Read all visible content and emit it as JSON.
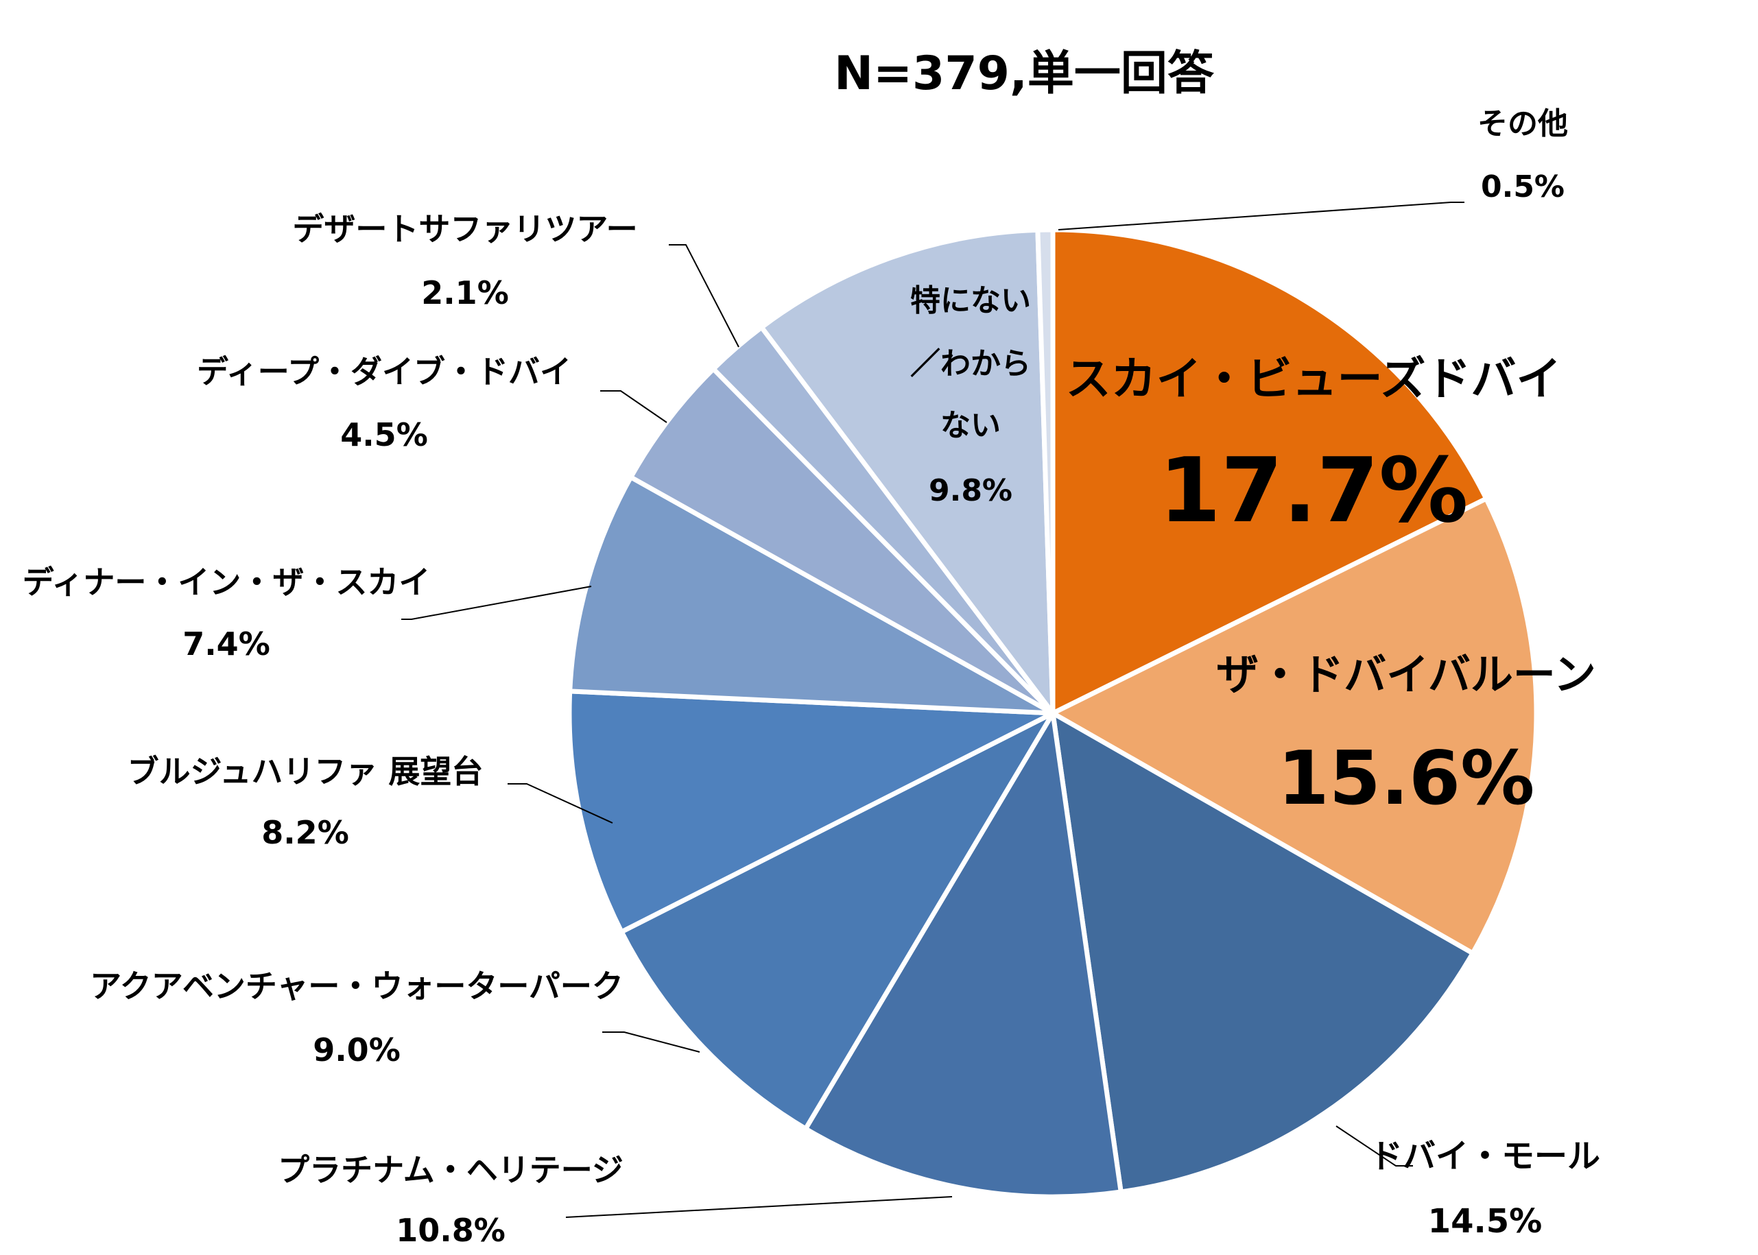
{
  "chart_data": {
    "type": "pie",
    "title": "N=379,単一回答",
    "slices": [
      {
        "label": "スカイ・ビューズドバイ",
        "label_lines": [
          "スカイ・ビューズドバイ"
        ],
        "value": 17.7,
        "value_text": "17.7%",
        "color": "#E46C0A"
      },
      {
        "label": "ザ・ドバイバルーン",
        "label_lines": [
          "ザ・ドバイバルーン"
        ],
        "value": 15.6,
        "value_text": "15.6%",
        "color": "#F0A76B"
      },
      {
        "label": "ドバイ・モール",
        "label_lines": [
          "ドバイ・モール"
        ],
        "value": 14.5,
        "value_text": "14.5%",
        "color": "#416B9C"
      },
      {
        "label": "プラチナム・ヘリテージ",
        "label_lines": [
          "プラチナム・ヘリテージ"
        ],
        "value": 10.8,
        "value_text": "10.8%",
        "color": "#4671A7"
      },
      {
        "label": "アクアベンチャー・ウォーターパーク",
        "label_lines": [
          "アクアベンチャー・ウォーターパーク"
        ],
        "value": 9.0,
        "value_text": "9.0%",
        "color": "#4A7AB3"
      },
      {
        "label": "ブルジュハリファ 展望台",
        "label_lines": [
          "ブルジュハリファ 展望台"
        ],
        "value": 8.2,
        "value_text": "8.2%",
        "color": "#4F81BD"
      },
      {
        "label": "ディナー・イン・ザ・スカイ",
        "label_lines": [
          "ディナー・イン・ザ・スカイ"
        ],
        "value": 7.4,
        "value_text": "7.4%",
        "color": "#7A9BC8"
      },
      {
        "label": "ディープ・ダイブ・ドバイ",
        "label_lines": [
          "ディープ・ダイブ・ドバイ"
        ],
        "value": 4.5,
        "value_text": "4.5%",
        "color": "#97ACD1"
      },
      {
        "label": "デザートサファリツアー",
        "label_lines": [
          "デザートサファリツアー"
        ],
        "value": 2.1,
        "value_text": "2.1%",
        "color": "#A5B8D8"
      },
      {
        "label": "特にない／わからない",
        "label_lines": [
          "特にない",
          "／わから",
          "ない"
        ],
        "value": 9.8,
        "value_text": "9.8%",
        "color": "#B9C8E0"
      },
      {
        "label": "その他",
        "label_lines": [
          "その他"
        ],
        "value": 0.5,
        "value_text": "0.5%",
        "color": "#D6DEEC"
      }
    ],
    "legend": "none",
    "start": "top",
    "direction": "clockwise"
  }
}
